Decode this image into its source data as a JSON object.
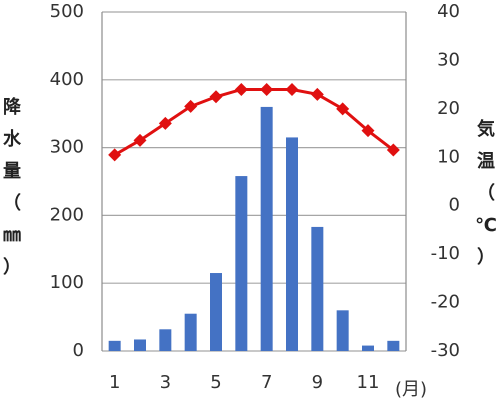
{
  "chart_data": {
    "type": "bar+line",
    "x": [
      1,
      2,
      3,
      4,
      5,
      6,
      7,
      8,
      9,
      10,
      11,
      12
    ],
    "x_tick_labels": [
      "1",
      "3",
      "5",
      "7",
      "9",
      "11"
    ],
    "x_unit": "(月)",
    "series": [
      {
        "type": "bar",
        "axis": "left",
        "color": "#4472C4",
        "values": [
          15,
          17,
          32,
          55,
          115,
          258,
          360,
          315,
          183,
          60,
          8,
          15
        ]
      },
      {
        "type": "line",
        "axis": "right",
        "color": "#E01010",
        "marker": "diamond",
        "values": [
          10.5,
          13.5,
          17,
          20.5,
          22.5,
          24,
          24,
          24,
          23,
          20,
          15.5,
          11.5
        ]
      }
    ],
    "y_left": {
      "label_chars": [
        "降",
        "水",
        "量",
        "（",
        "㎜",
        "）"
      ],
      "ylim": [
        0,
        500
      ],
      "ticks": [
        "0",
        "100",
        "200",
        "300",
        "400",
        "500"
      ]
    },
    "y_right": {
      "label_chars": [
        "気",
        "温",
        "（",
        "℃",
        "）"
      ],
      "ylim": [
        -30,
        40
      ],
      "ticks": [
        "-30",
        "-20",
        "-10",
        "0",
        "10",
        "20",
        "30",
        "40"
      ]
    },
    "grid": "horizontal"
  }
}
